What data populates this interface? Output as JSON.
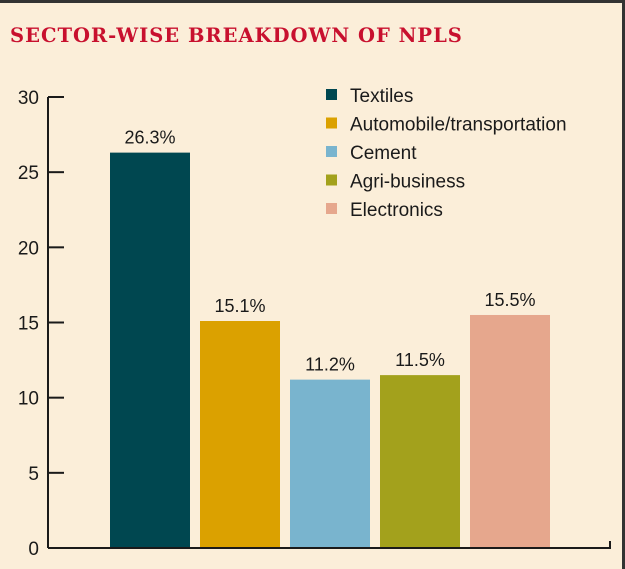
{
  "chart_data": {
    "type": "bar",
    "title": "SECTOR-WISE BREAKDOWN OF NPLS",
    "categories": [
      "Textiles",
      "Automobile/transportation",
      "Cement",
      "Agri-business",
      "Electronics"
    ],
    "values": [
      26.3,
      15.1,
      11.2,
      11.5,
      15.5
    ],
    "value_labels": [
      "26.3%",
      "15.1%",
      "11.2%",
      "11.5%",
      "15.5%"
    ],
    "colors": [
      "#004750",
      "#dba100",
      "#79b4ce",
      "#a3a11c",
      "#e6a78d"
    ],
    "ylim": [
      0,
      30
    ],
    "yticks": [
      0,
      5,
      10,
      15,
      20,
      25,
      30
    ],
    "xlabel": "",
    "ylabel": "",
    "grid": false,
    "legend_position": "top-right"
  },
  "style": {
    "background": "#fbeed9",
    "title_color": "#c8102e",
    "axis_color": "#1a1a1a"
  }
}
